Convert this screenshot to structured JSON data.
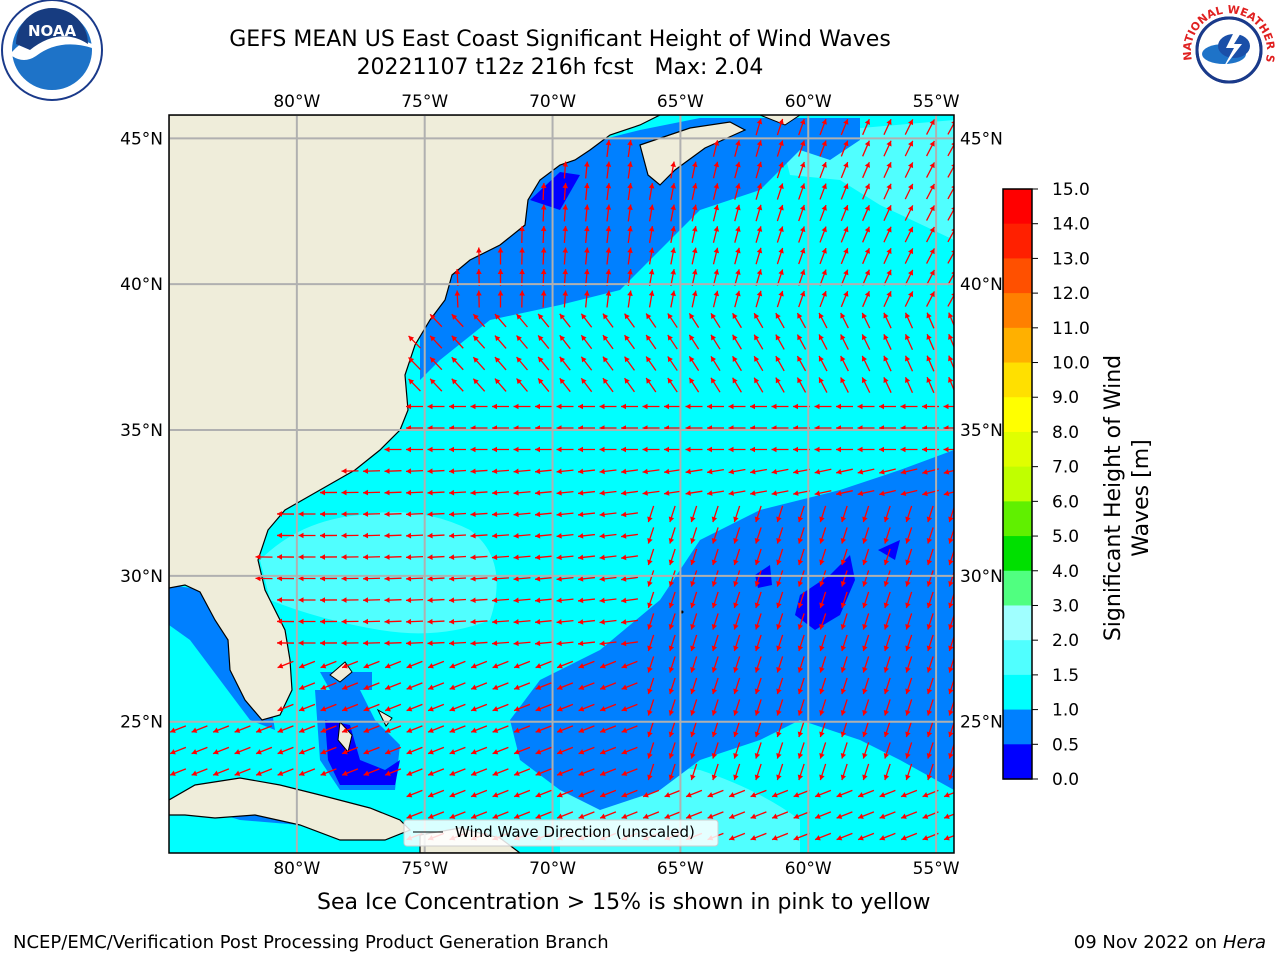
{
  "header": {
    "title_line1": "GEFS MEAN US East Coast Significant Height of Wind Waves",
    "title_date": "20221107 t12z 216h fcst",
    "title_max": "Max: 2.04"
  },
  "logos": {
    "noaa_text": "NOAA",
    "nws_text": "NATIONAL WEATHER SERVICE"
  },
  "map": {
    "lon_ticks": [
      "80°W",
      "75°W",
      "70°W",
      "65°W",
      "60°W",
      "55°W"
    ],
    "lat_ticks": [
      "45°N",
      "40°N",
      "35°N",
      "30°N",
      "25°N"
    ],
    "lon_values": [
      -80,
      -75,
      -70,
      -65,
      -60,
      -55
    ],
    "lat_values": [
      45,
      40,
      35,
      30,
      25
    ],
    "extent": {
      "lon_min": -85,
      "lon_max": -54.3,
      "lat_min": 20.5,
      "lat_max": 45.8
    },
    "legend_label": "Wind Wave Direction (unscaled)",
    "arrow_color": "#ff0000",
    "land_color": "#efedda",
    "ocean_shallow_color": "#00ffff",
    "ocean_mid_color": "#0080ff"
  },
  "colorbar": {
    "label_line1": "Significant Height of Wind",
    "label_line2": "Waves [m]",
    "ticks": [
      "15.0",
      "14.0",
      "13.0",
      "12.0",
      "11.0",
      "10.0",
      "9.0",
      "8.0",
      "7.0",
      "6.0",
      "5.0",
      "4.0",
      "3.0",
      "2.0",
      "1.5",
      "1.0",
      "0.5",
      "0.0"
    ],
    "colors": [
      "#ff0000",
      "#ff2000",
      "#ff5000",
      "#ff8000",
      "#ffa000",
      "#ffc000",
      "#ffef00",
      "#ffff00",
      "#e4ff00",
      "#c8ff00",
      "#80ff00",
      "#40ff00",
      "#00e000",
      "#50ff80",
      "#a0ffff",
      "#50ffff",
      "#00ffff",
      "#0080ff",
      "#0000ff"
    ]
  },
  "footer": {
    "sea_ice_note": "Sea Ice Concentration > 15% is shown in pink to yellow",
    "credit": "NCEP/EMC/Verification Post Processing Product Generation Branch",
    "date": "09 Nov 2022 on",
    "machine": "Hera"
  }
}
